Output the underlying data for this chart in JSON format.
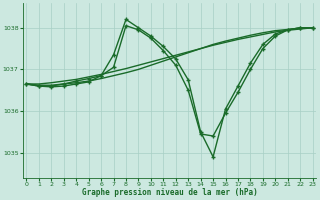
{
  "xlabel": "Graphe pression niveau de la mer (hPa)",
  "x_ticks": [
    0,
    1,
    2,
    3,
    4,
    5,
    6,
    7,
    8,
    9,
    10,
    11,
    12,
    13,
    14,
    15,
    16,
    17,
    18,
    19,
    20,
    21,
    22,
    23
  ],
  "ylim": [
    1034.4,
    1038.6
  ],
  "yticks": [
    1035,
    1036,
    1037,
    1038
  ],
  "bg_color": "#cce8e0",
  "grid_color": "#a8cfc5",
  "line_color": "#1a6b2a",
  "series": [
    {
      "x": [
        0,
        1,
        2,
        3,
        4,
        5,
        6,
        7,
        8,
        9,
        10,
        11,
        12,
        13,
        14,
        15,
        16,
        17,
        18,
        19,
        20,
        21,
        22,
        23
      ],
      "y": [
        1036.65,
        1036.65,
        1036.68,
        1036.72,
        1036.76,
        1036.82,
        1036.88,
        1036.95,
        1037.02,
        1037.1,
        1037.18,
        1037.26,
        1037.34,
        1037.42,
        1037.5,
        1037.58,
        1037.65,
        1037.72,
        1037.78,
        1037.84,
        1037.9,
        1037.94,
        1037.97,
        1038.0
      ],
      "marker": false,
      "lw": 1.0
    },
    {
      "x": [
        0,
        1,
        2,
        3,
        4,
        5,
        6,
        7,
        8,
        9,
        10,
        11,
        12,
        13,
        14,
        15,
        16,
        17,
        18,
        19,
        20,
        21,
        22,
        23
      ],
      "y": [
        1036.65,
        1036.62,
        1036.62,
        1036.65,
        1036.68,
        1036.72,
        1036.78,
        1036.85,
        1036.92,
        1037.0,
        1037.1,
        1037.2,
        1037.3,
        1037.4,
        1037.5,
        1037.6,
        1037.68,
        1037.75,
        1037.82,
        1037.88,
        1037.93,
        1037.96,
        1037.99,
        1038.0
      ],
      "marker": false,
      "lw": 1.0
    },
    {
      "x": [
        0,
        1,
        2,
        3,
        4,
        5,
        6,
        7,
        8,
        9,
        10,
        11,
        12,
        13,
        14,
        15,
        16,
        17,
        18,
        19,
        20,
        21,
        22,
        23
      ],
      "y": [
        1036.65,
        1036.6,
        1036.58,
        1036.6,
        1036.65,
        1036.7,
        1036.85,
        1037.05,
        1038.05,
        1037.95,
        1037.75,
        1037.45,
        1037.1,
        1036.5,
        1035.45,
        1035.4,
        1035.95,
        1036.45,
        1037.0,
        1037.5,
        1037.8,
        1037.95,
        1038.0,
        1038.0
      ],
      "marker": true,
      "lw": 1.0
    },
    {
      "x": [
        0,
        1,
        2,
        3,
        4,
        5,
        6,
        7,
        8,
        9,
        10,
        11,
        12,
        13,
        14,
        15,
        16,
        17,
        18,
        19,
        20,
        21,
        22,
        23
      ],
      "y": [
        1036.65,
        1036.6,
        1036.6,
        1036.65,
        1036.72,
        1036.78,
        1036.85,
        1037.35,
        1038.2,
        1038.0,
        1037.8,
        1037.55,
        1037.25,
        1036.75,
        1035.5,
        1034.9,
        1036.05,
        1036.6,
        1037.15,
        1037.6,
        1037.85,
        1037.95,
        1038.0,
        1038.0
      ],
      "marker": true,
      "lw": 1.0
    }
  ]
}
